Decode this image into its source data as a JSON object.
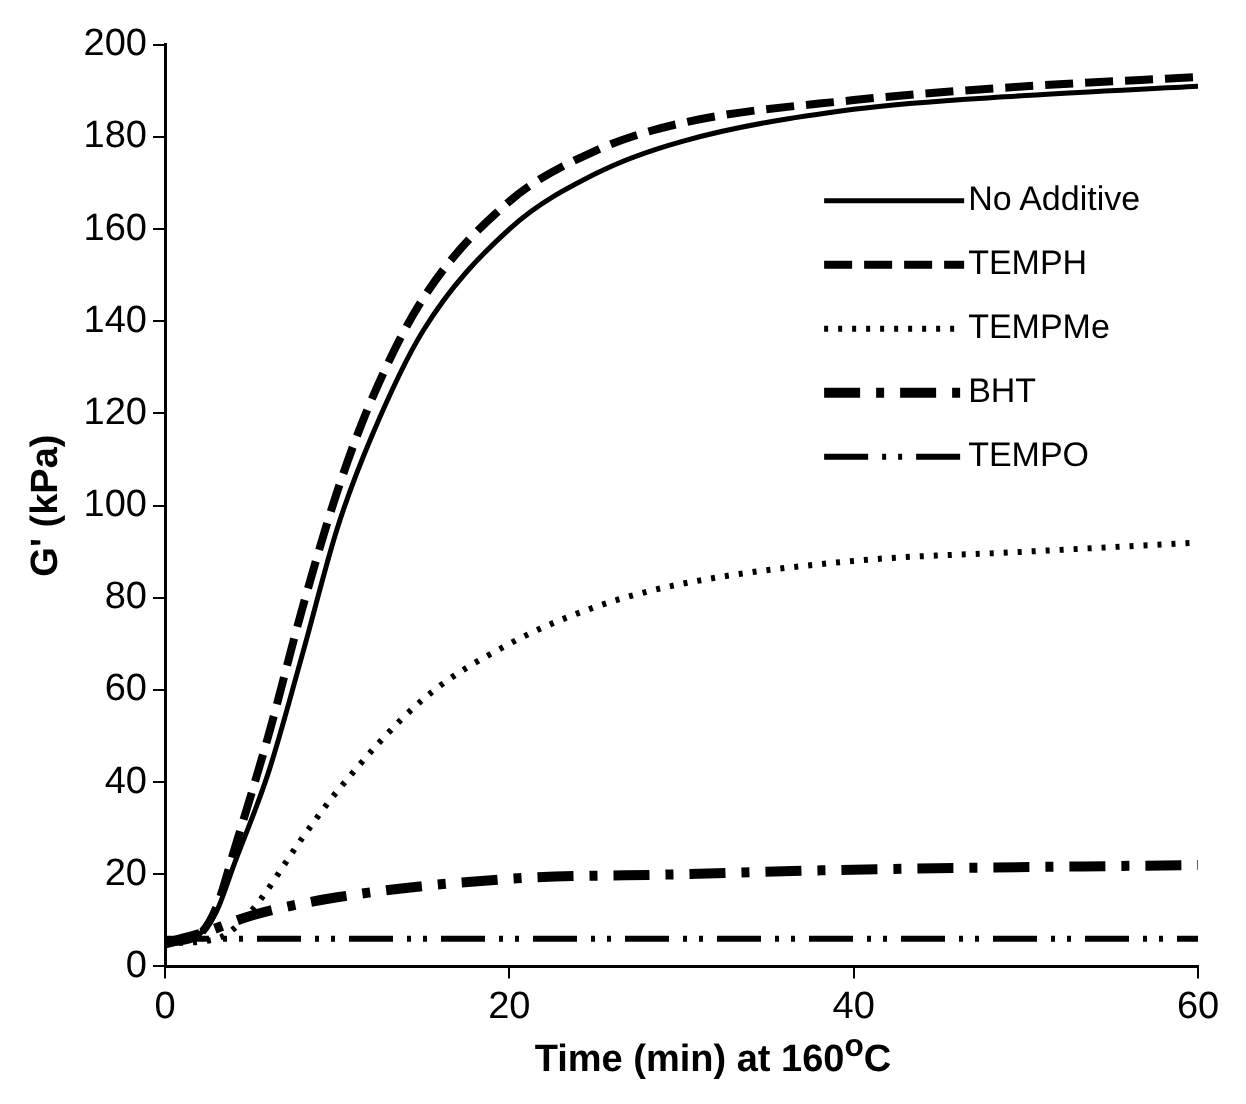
{
  "chart_data": {
    "type": "line",
    "xlabel": "Time (min) at 160$^{o}$C",
    "ylabel": "G' (kPa)",
    "xlim": [
      0,
      60
    ],
    "xticks": [
      0,
      20,
      40,
      60
    ],
    "ylim": [
      0,
      200
    ],
    "yticks": [
      0,
      20,
      40,
      60,
      80,
      100,
      120,
      140,
      160,
      180,
      200
    ],
    "grid": false,
    "legend": "top right",
    "marker": "none",
    "series": [
      {
        "name": "No Additive",
        "color": "#000000",
        "line_style": "solid",
        "x": [
          0,
          2,
          3,
          4,
          6,
          8,
          10,
          12,
          15,
          20,
          25,
          30,
          40,
          50,
          60
        ],
        "values": [
          5,
          7,
          12,
          22,
          42,
          68,
          95,
          115,
          138,
          160,
          172,
          179,
          186,
          189,
          191
        ]
      },
      {
        "name": "TEMPH",
        "color": "#000000",
        "line_style": "dashed",
        "x": [
          0,
          2,
          3,
          4,
          6,
          8,
          10,
          12,
          15,
          20,
          25,
          30,
          40,
          50,
          60
        ],
        "values": [
          5,
          7,
          13,
          25,
          50,
          78,
          103,
          123,
          145,
          166,
          177,
          183,
          188,
          191,
          193
        ]
      },
      {
        "name": "TEMPMe",
        "color": "#000000",
        "line_style": "dotted",
        "x": [
          0,
          3,
          5,
          8,
          10,
          15,
          20,
          25,
          30,
          40,
          50,
          60
        ],
        "values": [
          5,
          6,
          12,
          28,
          38,
          58,
          70,
          78,
          83,
          88,
          90,
          92
        ]
      },
      {
        "name": "BHT",
        "color": "#000000",
        "line_style": "dashdot",
        "x": [
          0,
          2,
          5,
          10,
          20,
          30,
          40,
          60
        ],
        "values": [
          5,
          7,
          11,
          15,
          19,
          20,
          21,
          22
        ]
      },
      {
        "name": "TEMPO",
        "color": "#000000",
        "line_style": "dashdotdot",
        "x": [
          0,
          30,
          60
        ],
        "values": [
          6,
          6,
          6
        ]
      }
    ]
  }
}
